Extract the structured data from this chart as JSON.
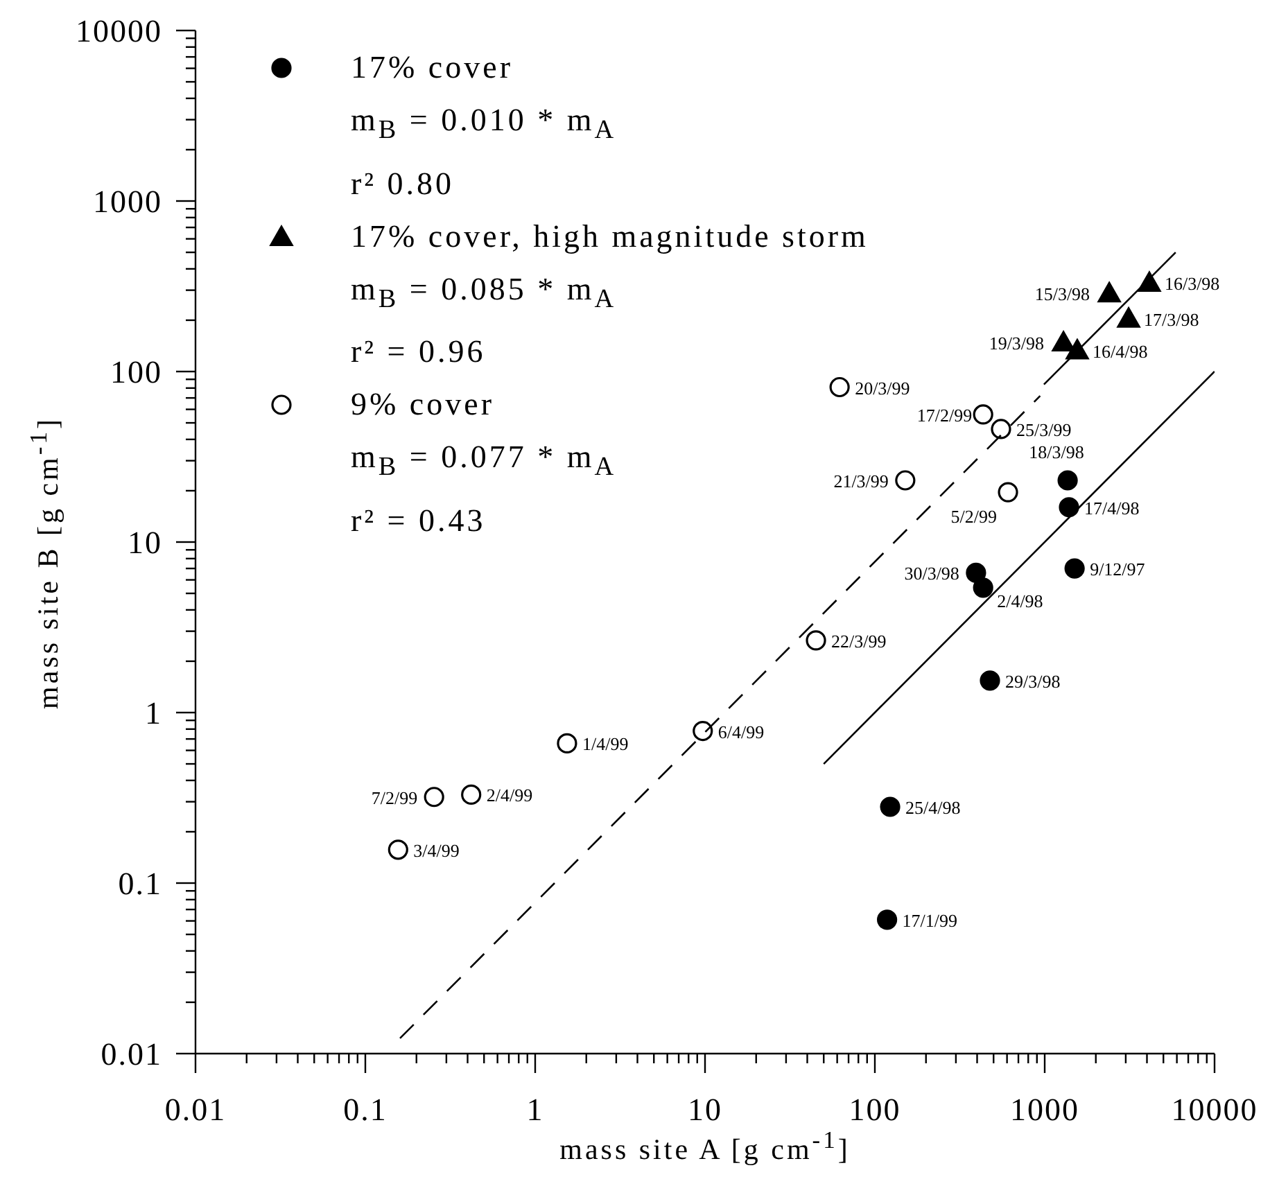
{
  "chart_data": {
    "type": "scatter",
    "xlabel": "mass site A [g cm$^{-1}$]",
    "ylabel": "mass site B [g cm$^{-1}$]",
    "log": "xy",
    "grid": false,
    "legend": "top left",
    "xlim": [
      0.01,
      10000
    ],
    "ylim": [
      0.01,
      10000
    ],
    "xticks": [
      0.01,
      {
        "value": 0.02,
        "label": null
      },
      {
        "value": 0.03,
        "label": null
      },
      {
        "value": 0.04,
        "label": null
      },
      {
        "value": 0.05,
        "label": null
      },
      {
        "value": 0.06,
        "label": null
      },
      {
        "value": 0.07,
        "label": null
      },
      {
        "value": 0.08,
        "label": null
      },
      {
        "value": 0.09,
        "label": null
      },
      0.1,
      {
        "value": 0.2,
        "label": null
      },
      {
        "value": 0.3,
        "label": null
      },
      {
        "value": 0.4,
        "label": null
      },
      {
        "value": 0.5,
        "label": null
      },
      {
        "value": 0.6,
        "label": null
      },
      {
        "value": 0.7,
        "label": null
      },
      {
        "value": 0.8,
        "label": null
      },
      {
        "value": 0.9,
        "label": null
      },
      1,
      {
        "value": 2,
        "label": null
      },
      {
        "value": 3,
        "label": null
      },
      {
        "value": 4,
        "label": null
      },
      {
        "value": 5,
        "label": null
      },
      {
        "value": 6,
        "label": null
      },
      {
        "value": 7,
        "label": null
      },
      {
        "value": 8,
        "label": null
      },
      {
        "value": 9,
        "label": null
      },
      10,
      {
        "value": 20,
        "label": null
      },
      {
        "value": 30,
        "label": null
      },
      {
        "value": 40,
        "label": null
      },
      {
        "value": 50,
        "label": null
      },
      {
        "value": 60,
        "label": null
      },
      {
        "value": 70,
        "label": null
      },
      {
        "value": 80,
        "label": null
      },
      {
        "value": 90,
        "label": null
      },
      100,
      {
        "value": 200,
        "label": null
      },
      {
        "value": 300,
        "label": null
      },
      {
        "value": 400,
        "label": null
      },
      {
        "value": 500,
        "label": null
      },
      {
        "value": 600,
        "label": null
      },
      {
        "value": 700,
        "label": null
      },
      {
        "value": 800,
        "label": null
      },
      {
        "value": 900,
        "label": null
      },
      1000,
      {
        "value": 2000,
        "label": null
      },
      {
        "value": 3000,
        "label": null
      },
      {
        "value": 4000,
        "label": null
      },
      {
        "value": 5000,
        "label": null
      },
      {
        "value": 6000,
        "label": null
      },
      {
        "value": 7000,
        "label": null
      },
      {
        "value": 8000,
        "label": null
      },
      {
        "value": 9000,
        "label": null
      },
      10000
    ],
    "yticks": [
      0.01,
      {
        "value": 0.02,
        "label": null
      },
      {
        "value": 0.03,
        "label": null
      },
      {
        "value": 0.04,
        "label": null
      },
      {
        "value": 0.05,
        "label": null
      },
      {
        "value": 0.06,
        "label": null
      },
      {
        "value": 0.07,
        "label": null
      },
      {
        "value": 0.08,
        "label": null
      },
      {
        "value": 0.09,
        "label": null
      },
      0.1,
      {
        "value": 0.2,
        "label": null
      },
      {
        "value": 0.3,
        "label": null
      },
      {
        "value": 0.4,
        "label": null
      },
      {
        "value": 0.5,
        "label": null
      },
      {
        "value": 0.6,
        "label": null
      },
      {
        "value": 0.7,
        "label": null
      },
      {
        "value": 0.8,
        "label": null
      },
      {
        "value": 0.9,
        "label": null
      },
      1,
      {
        "value": 2,
        "label": null
      },
      {
        "value": 3,
        "label": null
      },
      {
        "value": 4,
        "label": null
      },
      {
        "value": 5,
        "label": null
      },
      {
        "value": 6,
        "label": null
      },
      {
        "value": 7,
        "label": null
      },
      {
        "value": 8,
        "label": null
      },
      {
        "value": 9,
        "label": null
      },
      10,
      {
        "value": 20,
        "label": null
      },
      {
        "value": 30,
        "label": null
      },
      {
        "value": 40,
        "label": null
      },
      {
        "value": 50,
        "label": null
      },
      {
        "value": 60,
        "label": null
      },
      {
        "value": 70,
        "label": null
      },
      {
        "value": 80,
        "label": null
      },
      {
        "value": 90,
        "label": null
      },
      100,
      {
        "value": 200,
        "label": null
      },
      {
        "value": 300,
        "label": null
      },
      {
        "value": 400,
        "label": null
      },
      {
        "value": 500,
        "label": null
      },
      {
        "value": 600,
        "label": null
      },
      {
        "value": 700,
        "label": null
      },
      {
        "value": 800,
        "label": null
      },
      {
        "value": 900,
        "label": null
      },
      1000,
      {
        "value": 2000,
        "label": null
      },
      {
        "value": 3000,
        "label": null
      },
      {
        "value": 4000,
        "label": null
      },
      {
        "value": 5000,
        "label": null
      },
      {
        "value": 6000,
        "label": null
      },
      {
        "value": 7000,
        "label": null
      },
      {
        "value": 8000,
        "label": null
      },
      {
        "value": 9000,
        "label": null
      },
      10000
    ],
    "annotations": [
      "m$_{B}$ = 0.010 * m$_{A}$",
      "r² 0.80",
      "m$_{B}$ = 0.085 * m$_{A}$",
      "r² = 0.96",
      "m$_{B}$ = 0.077 * m$_{A}$",
      "r² = 0.43"
    ],
    "series": [
      {
        "name": "17% cover",
        "type": "scatter",
        "marker": "circle",
        "color": "#000000",
        "x": [
          1365,
          1390,
          1500,
          394,
          434,
          476,
          123,
          118
        ],
        "values": [
          23,
          16,
          7.0,
          6.6,
          5.4,
          1.54,
          0.28,
          0.061
        ],
        "value_labels": [
          "18/3/98",
          "17/4/98",
          "9/12/97",
          "30/3/98",
          "2/4/98",
          "29/3/98",
          "25/4/98",
          "17/1/99"
        ]
      },
      {
        "name": "17% cover, high magnitude storm",
        "type": "scatter",
        "marker": "triangle",
        "color": "#000000",
        "x": [
          2400,
          4130,
          3120,
          1290,
          1555
        ],
        "values": [
          287,
          331,
          204,
          148,
          133
        ],
        "value_labels": [
          "15/3/98",
          "16/3/98",
          "17/3/98",
          "19/3/98",
          "16/4/98"
        ]
      },
      {
        "name": "9% cover",
        "type": "scatter",
        "marker": "circle",
        "color": "#ffffff",
        "x": [
          62,
          434,
          553,
          151,
          608,
          45,
          9.7,
          1.54,
          0.42,
          0.254,
          0.156
        ],
        "values": [
          81,
          56,
          46,
          23,
          19.6,
          2.65,
          0.78,
          0.66,
          0.33,
          0.32,
          0.157
        ],
        "value_labels": [
          "20/3/99",
          "17/2/99",
          "25/3/99",
          "21/3/99",
          "5/2/99",
          "22/3/99",
          "6/4/99",
          "1/4/99",
          "2/4/99",
          "7/2/99",
          "3/4/99"
        ]
      },
      {
        "type": "line",
        "marker": "none",
        "line_style": "solid",
        "color": "#000000",
        "x": [
          50,
          10000
        ],
        "values": [
          0.5,
          100
        ]
      },
      {
        "type": "line",
        "marker": "none",
        "line_style": "solid",
        "color": "#000000",
        "x": [
          990,
          5900
        ],
        "values": [
          84,
          500
        ]
      },
      {
        "type": "line",
        "marker": "none",
        "line_style": "dashed",
        "color": "#000000",
        "x": [
          0.16,
          940
        ],
        "values": [
          0.0123,
          72
        ]
      }
    ]
  }
}
